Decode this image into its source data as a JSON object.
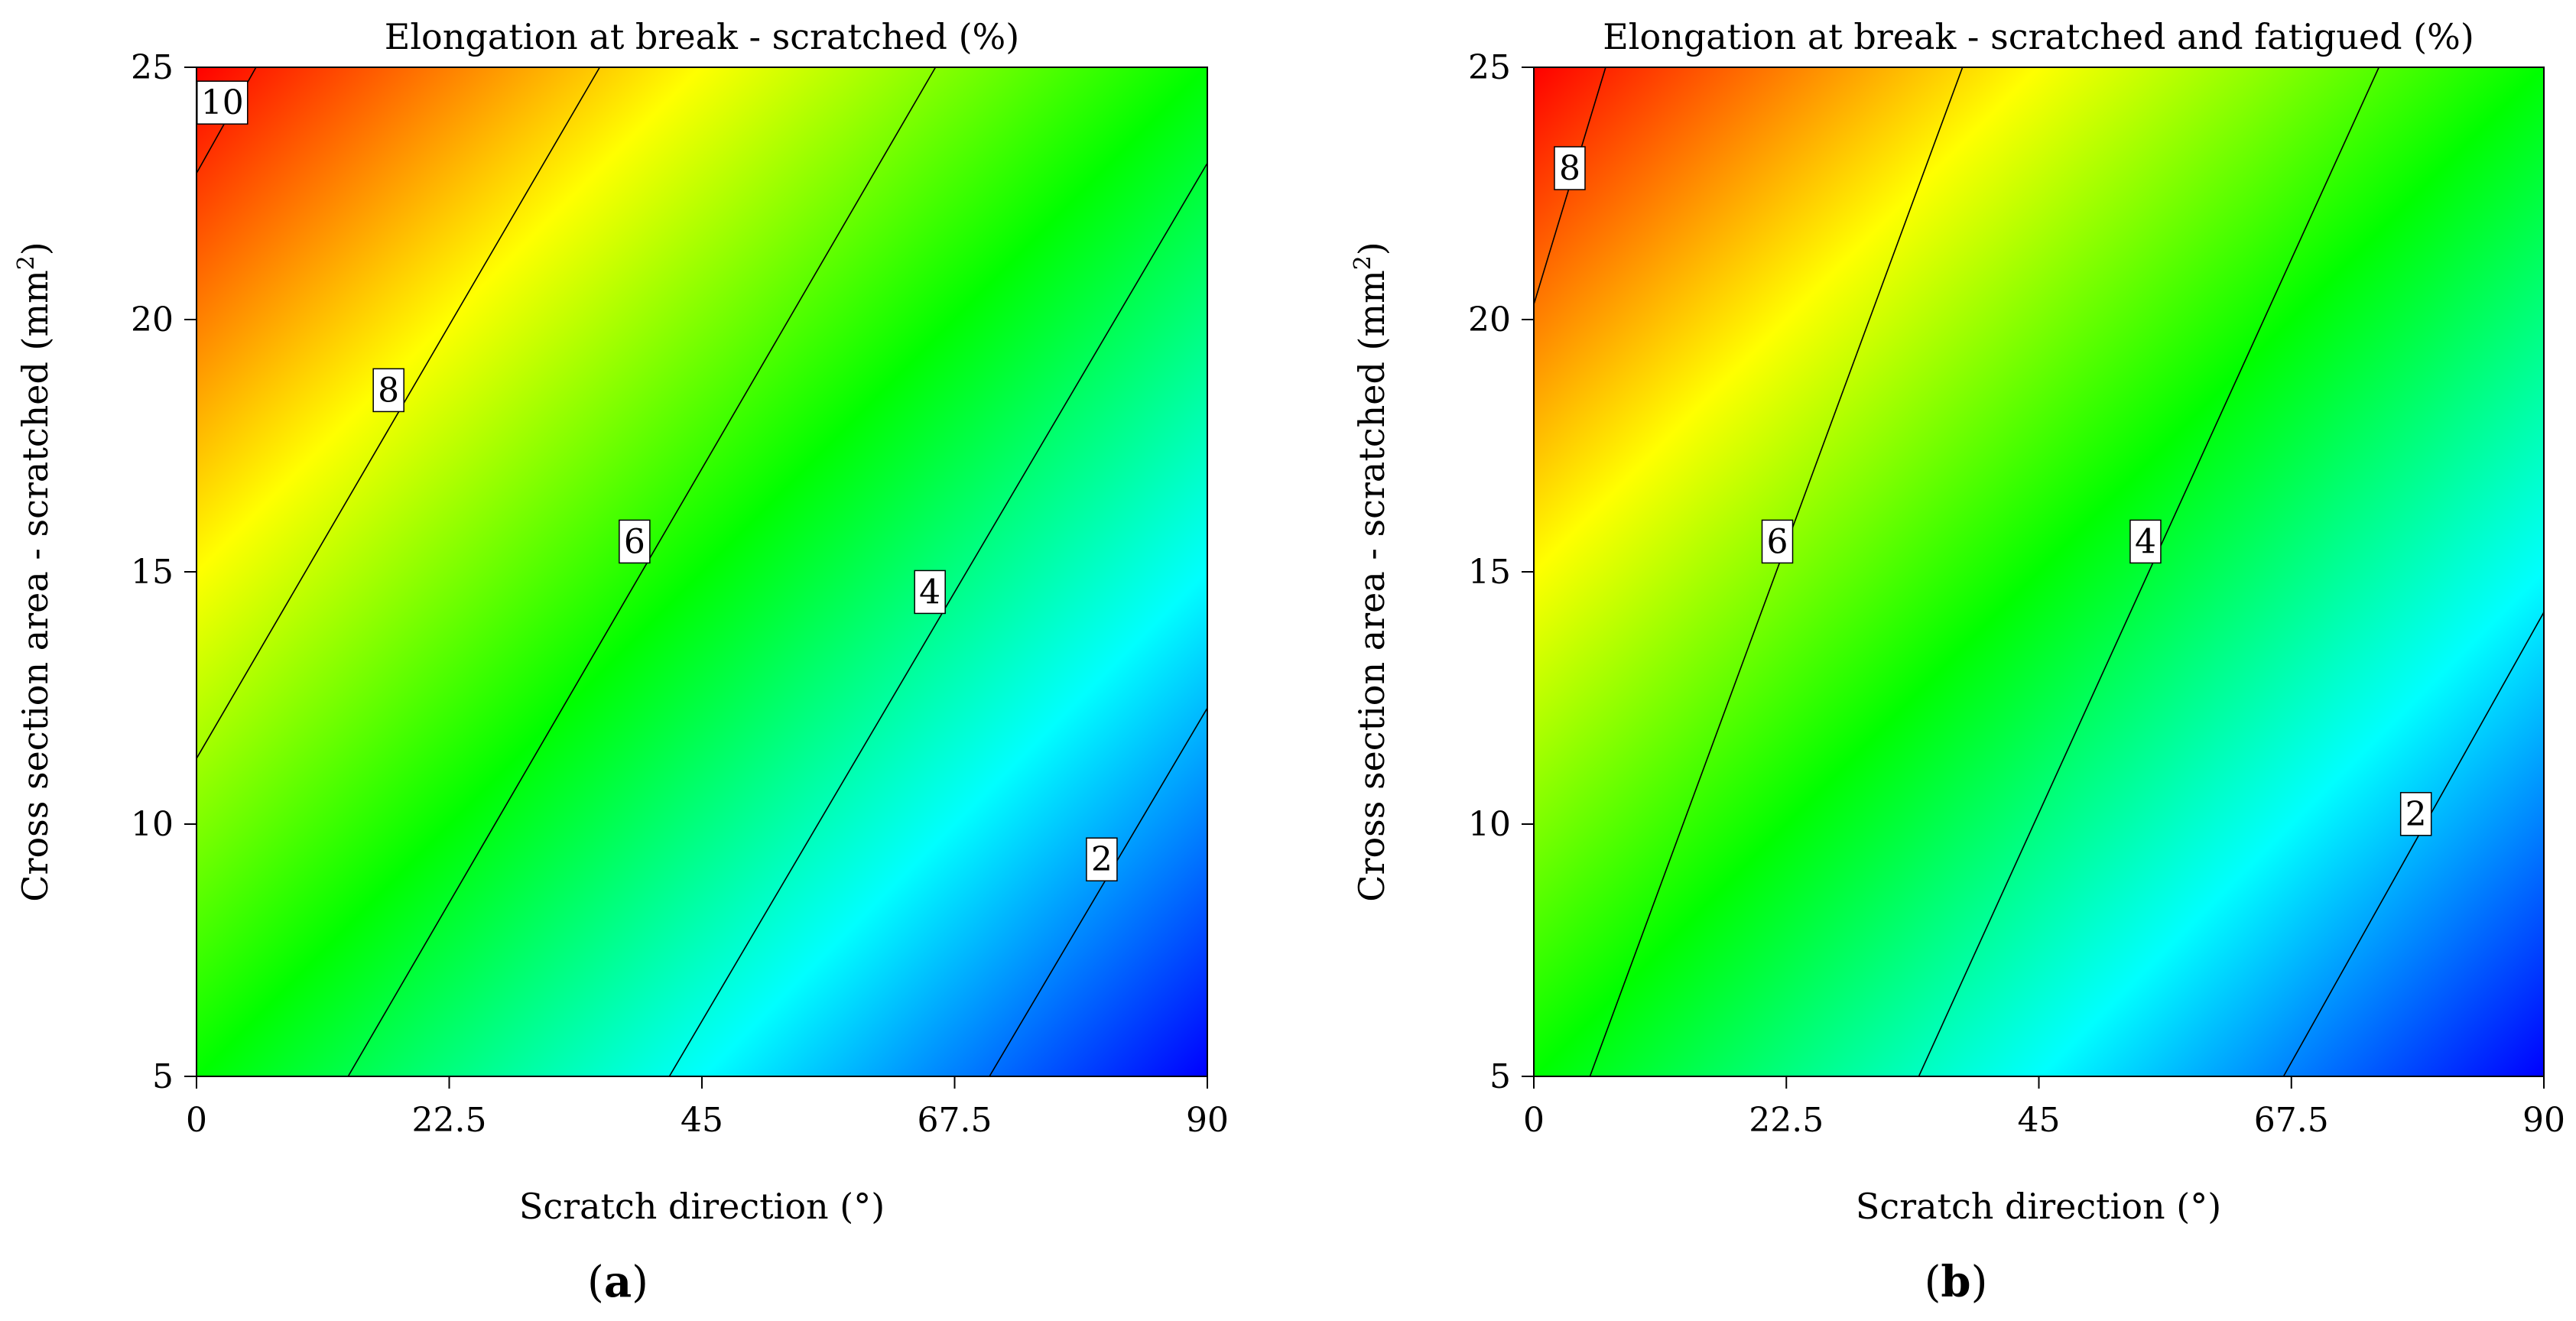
{
  "figure": {
    "panels": [
      {
        "tag_open": "(",
        "tag_letter": "a",
        "tag_close": ")"
      },
      {
        "tag_open": "(",
        "tag_letter": "b",
        "tag_close": ")"
      }
    ]
  },
  "chart_data": [
    {
      "type": "heatmap",
      "subtype": "contour",
      "title": "Elongation at break - scratched (%)",
      "xlabel": "Scratch direction (°)",
      "ylabel": "Cross section area - scratched (mm",
      "ylabel_sup": "2",
      "ylabel_close": ")",
      "xlim": [
        0,
        90
      ],
      "ylim": [
        5,
        25
      ],
      "x_ticks": [
        0,
        22.5,
        45,
        67.5,
        90
      ],
      "x_tick_labels": [
        "0",
        "22.5",
        "45",
        "67.5",
        "90"
      ],
      "y_ticks": [
        5,
        10,
        15,
        20,
        25
      ],
      "y_tick_labels": [
        "5",
        "10",
        "15",
        "20",
        "25"
      ],
      "colormap": [
        "#0000ff",
        "#00ffff",
        "#00ff00",
        "#ffff00",
        "#ff0000"
      ],
      "value_range": [
        0.8,
        10.9
      ],
      "contours": [
        {
          "level": 10,
          "label": "10",
          "points": [
            [
              0,
              22.9
            ],
            [
              5.3,
              25
            ]
          ],
          "label_at": [
            2.3,
            24.3
          ]
        },
        {
          "level": 8,
          "label": "8",
          "points": [
            [
              0,
              11.3
            ],
            [
              35.9,
              25
            ]
          ],
          "label_at": [
            17.1,
            18.6
          ]
        },
        {
          "level": 6,
          "label": "6",
          "points": [
            [
              13.5,
              5
            ],
            [
              65.8,
              25
            ]
          ],
          "label_at": [
            39.0,
            15.6
          ]
        },
        {
          "level": 4,
          "label": "4",
          "points": [
            [
              42.1,
              5
            ],
            [
              90,
              23.1
            ]
          ],
          "label_at": [
            65.3,
            14.6
          ]
        },
        {
          "level": 2,
          "label": "2",
          "points": [
            [
              70.6,
              5
            ],
            [
              90,
              12.3
            ]
          ],
          "label_at": [
            80.6,
            9.3
          ]
        }
      ]
    },
    {
      "type": "heatmap",
      "subtype": "contour",
      "title": "Elongation at break - scratched and fatigued (%)",
      "xlabel": "Scratch direction (°)",
      "ylabel": "Cross section area - scratched (mm",
      "ylabel_sup": "2",
      "ylabel_close": ")",
      "xlim": [
        0,
        90
      ],
      "ylim": [
        5,
        25
      ],
      "x_ticks": [
        0,
        22.5,
        45,
        67.5,
        90
      ],
      "x_tick_labels": [
        "0",
        "22.5",
        "45",
        "67.5",
        "90"
      ],
      "y_ticks": [
        5,
        10,
        15,
        20,
        25
      ],
      "y_tick_labels": [
        "5",
        "10",
        "15",
        "20",
        "25"
      ],
      "colormap": [
        "#0000ff",
        "#00ffff",
        "#00ff00",
        "#ffff00",
        "#ff0000"
      ],
      "value_range": [
        1.0,
        9.0
      ],
      "contours": [
        {
          "level": 8,
          "label": "8",
          "points": [
            [
              0,
              20.3
            ],
            [
              6.4,
              25
            ]
          ],
          "label_at": [
            3.2,
            23.0
          ]
        },
        {
          "level": 6,
          "label": "6",
          "points": [
            [
              5.0,
              5
            ],
            [
              38.2,
              25
            ]
          ],
          "label_at": [
            21.7,
            15.6
          ]
        },
        {
          "level": 4,
          "label": "4",
          "points": [
            [
              34.3,
              5
            ],
            [
              75.3,
              25
            ]
          ],
          "label_at": [
            54.5,
            15.6
          ]
        },
        {
          "level": 2,
          "label": "2",
          "points": [
            [
              66.8,
              5
            ],
            [
              90,
              14.2
            ]
          ],
          "label_at": [
            78.6,
            10.2
          ]
        }
      ]
    }
  ]
}
